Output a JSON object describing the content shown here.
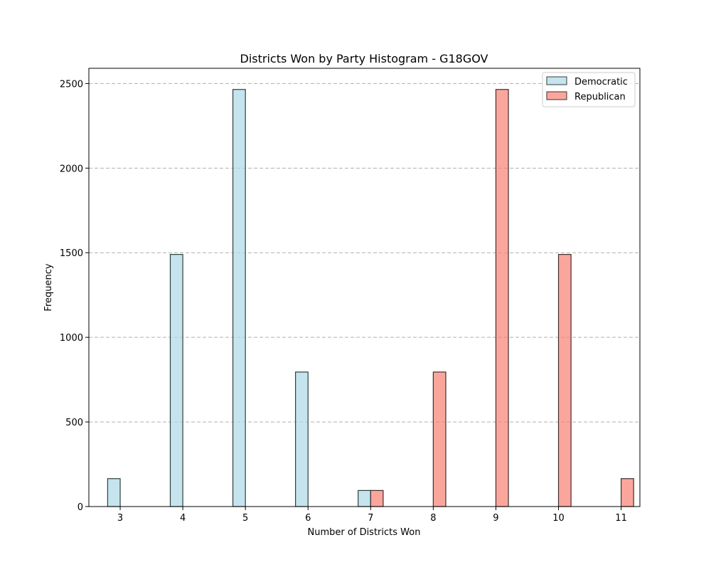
{
  "chart_data": {
    "type": "bar",
    "title": "Districts Won by Party Histogram - G18GOV",
    "xlabel": "Number of Districts Won",
    "ylabel": "Frequency",
    "x_ticks": [
      "3",
      "4",
      "5",
      "6",
      "7",
      "8",
      "9",
      "10",
      "11"
    ],
    "y_ticks": [
      "0",
      "500",
      "1000",
      "1500",
      "2000",
      "2500"
    ],
    "xlim": [
      2.5,
      11.3
    ],
    "ylim": [
      0,
      2590
    ],
    "grid": "y-dashed",
    "legend_position": "top-right",
    "series": [
      {
        "name": "Democratic",
        "color": "#add8e6",
        "edge_color": "#2f3f3f",
        "points": [
          {
            "x": 3,
            "y": 165
          },
          {
            "x": 4,
            "y": 1490
          },
          {
            "x": 5,
            "y": 2465
          },
          {
            "x": 6,
            "y": 795
          },
          {
            "x": 7,
            "y": 95
          }
        ]
      },
      {
        "name": "Republican",
        "color": "#fa8072",
        "edge_color": "#3f2f2f",
        "points": [
          {
            "x": 7,
            "y": 95
          },
          {
            "x": 8,
            "y": 795
          },
          {
            "x": 9,
            "y": 2465
          },
          {
            "x": 10,
            "y": 1490
          },
          {
            "x": 11,
            "y": 165
          }
        ]
      }
    ]
  }
}
